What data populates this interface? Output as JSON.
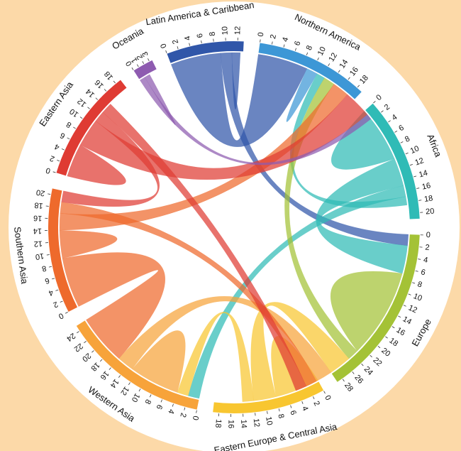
{
  "chart_data": {
    "type": "chord",
    "title": "",
    "unit": "",
    "regions": [
      {
        "name": "Northern America",
        "color": "#3d97d6",
        "total": 19,
        "ticks": [
          0,
          2,
          4,
          6,
          8,
          10,
          12,
          14,
          16,
          18
        ]
      },
      {
        "name": "Africa",
        "color": "#2fbbb6",
        "total": 21,
        "ticks": [
          0,
          2,
          4,
          6,
          8,
          10,
          12,
          14,
          16,
          18,
          20
        ]
      },
      {
        "name": "Europe",
        "color": "#a4c236",
        "total": 29,
        "ticks": [
          0,
          2,
          4,
          6,
          8,
          10,
          12,
          14,
          16,
          18,
          20,
          22,
          24,
          26,
          28
        ]
      },
      {
        "name": "Eastern Europe & Central Asia",
        "color": "#f8c630",
        "total": 19,
        "ticks": [
          0,
          2,
          4,
          6,
          8,
          10,
          12,
          14,
          16,
          18
        ]
      },
      {
        "name": "Western Asia",
        "color": "#f7a33a",
        "total": 25,
        "ticks": [
          0,
          2,
          4,
          6,
          8,
          10,
          12,
          14,
          16,
          18,
          20,
          22,
          24
        ]
      },
      {
        "name": "Southern Asia",
        "color": "#ee6a2c",
        "total": 21,
        "ticks": [
          0,
          2,
          4,
          6,
          8,
          10,
          12,
          14,
          16,
          18,
          20
        ]
      },
      {
        "name": "Eastern Asia",
        "color": "#df3b33",
        "total": 19,
        "ticks": [
          0,
          2,
          4,
          6,
          8,
          10,
          12,
          14,
          16,
          18
        ]
      },
      {
        "name": "Oceania",
        "color": "#8e5bb0",
        "total": 3.5,
        "ticks": [
          0,
          1,
          2,
          3
        ]
      },
      {
        "name": "Latin America & Caribbean",
        "color": "#3056a9",
        "total": 13,
        "ticks": [
          0,
          2,
          4,
          6,
          8,
          10,
          12
        ]
      }
    ],
    "flows": [
      {
        "from": "Latin America & Caribbean",
        "to": "Northern America",
        "value": 9
      },
      {
        "from": "Latin America & Caribbean",
        "to": "Europe",
        "value": 2
      },
      {
        "from": "Latin America & Caribbean",
        "to": "Latin America & Caribbean",
        "value": 1.5
      },
      {
        "from": "Northern America",
        "to": "Northern America",
        "value": 2
      },
      {
        "from": "Africa",
        "to": "Africa",
        "value": 10
      },
      {
        "from": "Africa",
        "to": "Europe",
        "value": 5
      },
      {
        "from": "Africa",
        "to": "Western Asia",
        "value": 2
      },
      {
        "from": "Africa",
        "to": "Northern America",
        "value": 1.5
      },
      {
        "from": "Europe",
        "to": "Europe",
        "value": 16
      },
      {
        "from": "Europe",
        "to": "Northern America",
        "value": 2
      },
      {
        "from": "Eastern Europe & Central Asia",
        "to": "Eastern Europe & Central Asia",
        "value": 8
      },
      {
        "from": "Eastern Europe & Central Asia",
        "to": "Europe",
        "value": 4
      },
      {
        "from": "Eastern Europe & Central Asia",
        "to": "Western Asia",
        "value": 2
      },
      {
        "from": "Western Asia",
        "to": "Western Asia",
        "value": 9
      },
      {
        "from": "Western Asia",
        "to": "Europe",
        "value": 3
      },
      {
        "from": "Southern Asia",
        "to": "Western Asia",
        "value": 9
      },
      {
        "from": "Southern Asia",
        "to": "Southern Asia",
        "value": 5
      },
      {
        "from": "Southern Asia",
        "to": "Northern America",
        "value": 3
      },
      {
        "from": "Southern Asia",
        "to": "Europe",
        "value": 2
      },
      {
        "from": "Eastern Asia",
        "to": "Eastern Asia",
        "value": 6
      },
      {
        "from": "Eastern Asia",
        "to": "Northern America",
        "value": 5
      },
      {
        "from": "Eastern Asia",
        "to": "Southern Asia",
        "value": 2
      },
      {
        "from": "Eastern Asia",
        "to": "Europe",
        "value": 2
      },
      {
        "from": "Oceania",
        "to": "Northern America",
        "value": 1
      },
      {
        "from": "Oceania",
        "to": "Oceania",
        "value": 1
      }
    ]
  }
}
